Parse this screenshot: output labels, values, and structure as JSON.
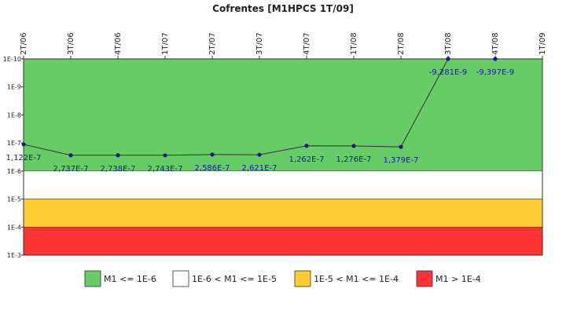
{
  "chart_data": {
    "type": "line",
    "title": "Cofrentes [M1HPCS 1T/09]",
    "categories": [
      "2T/06",
      "3T/06",
      "4T/06",
      "1T/07",
      "2T/07",
      "3T/07",
      "4T/07",
      "1T/08",
      "2T/08",
      "3T/08",
      "4T/08",
      "1T/09"
    ],
    "values": [
      1.122e-07,
      2.737e-07,
      2.738e-07,
      2.743e-07,
      2.586e-07,
      2.621e-07,
      1.262e-07,
      1.276e-07,
      1.379e-07,
      -9.281e-09,
      -9.397e-09,
      null
    ],
    "value_labels": [
      "1,122E-7",
      "2,737E-7",
      "2,738E-7",
      "2,743E-7",
      "2,586E-7",
      "2,621E-7",
      "1,262E-7",
      "1,276E-7",
      "1,379E-7",
      "-9,281E-9",
      "-9,397E-9",
      null
    ],
    "color": "#1a1a8c",
    "line_color": "#333333",
    "ylog": true,
    "y_inverted": true,
    "ylim": [
      1e-10,
      0.001
    ],
    "yticks": [
      {
        "value": 1e-10,
        "label": "1E-10"
      },
      {
        "value": 1e-09,
        "label": "1E-9"
      },
      {
        "value": 1e-08,
        "label": "1E-8"
      },
      {
        "value": 1e-07,
        "label": "1E-7"
      },
      {
        "value": 1e-06,
        "label": "1E-6"
      },
      {
        "value": 1e-05,
        "label": "1E-5"
      },
      {
        "value": 0.0001,
        "label": "1E-4"
      },
      {
        "value": 0.001,
        "label": "1E-3"
      }
    ],
    "bands": [
      {
        "name": "M1 <= 1E-6",
        "color": "#66cc66",
        "range": [
          1e-10,
          1e-06
        ]
      },
      {
        "name": "1E-6 < M1 <= 1E-5",
        "color": "#ffffff",
        "range": [
          1e-06,
          1e-05
        ]
      },
      {
        "name": "1E-5 < M1 <= 1E-4",
        "color": "#ffcc33",
        "range": [
          1e-05,
          0.0001
        ]
      },
      {
        "name": "M1 > 1E-4",
        "color": "#ff3333",
        "range": [
          0.0001,
          0.001
        ]
      }
    ]
  }
}
